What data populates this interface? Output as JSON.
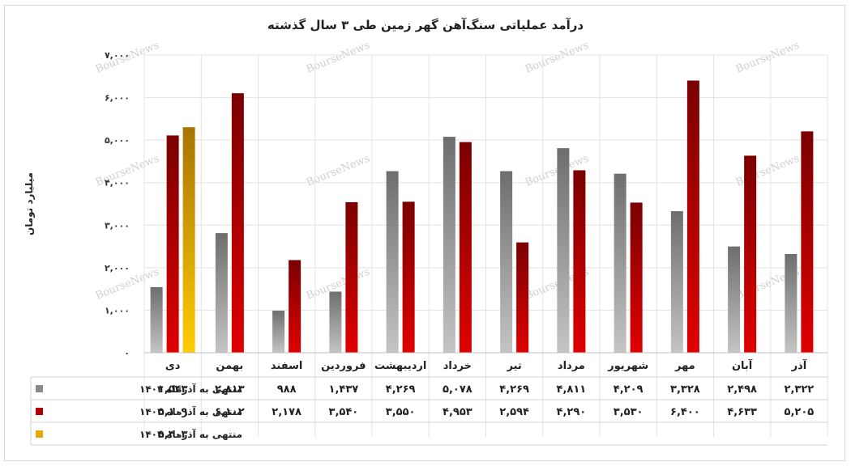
{
  "chart_data": {
    "type": "bar",
    "title": "درآمد عملیاتی سنگ‌آهن گهر زمین طی ۳ سال گذشته",
    "xlabel": "",
    "ylabel": "میلیارد تومان",
    "ylim": [
      0,
      7000
    ],
    "yticks": [
      0,
      1000,
      2000,
      3000,
      4000,
      5000,
      6000,
      7000
    ],
    "ytick_labels": [
      "۰",
      "۱,۰۰۰",
      "۲,۰۰۰",
      "۳,۰۰۰",
      "۴,۰۰۰",
      "۵,۰۰۰",
      "۶,۰۰۰",
      "۷,۰۰۰"
    ],
    "grid": true,
    "legend_placement": "table-below",
    "watermark": "BourseNews",
    "categories": [
      "آذر",
      "آبان",
      "مهر",
      "شهریور",
      "مرداد",
      "تیر",
      "خرداد",
      "اردیبهشت",
      "فروردین",
      "اسفند",
      "بهمن",
      "دی"
    ],
    "series": [
      {
        "name": "منتهی به آذرماه ۱۴۰۲",
        "color": "#8a8a8a",
        "values": [
          2322,
          2498,
          3328,
          4209,
          4811,
          4269,
          5078,
          4269,
          1437,
          988,
          2813,
          1543
        ],
        "labels": [
          "۲,۳۲۲",
          "۲,۴۹۸",
          "۳,۳۲۸",
          "۴,۲۰۹",
          "۴,۸۱۱",
          "۴,۲۶۹",
          "۵,۰۷۸",
          "۴,۲۶۹",
          "۱,۴۳۷",
          "۹۸۸",
          "۲,۸۱۳",
          "۱,۵۴۳"
        ]
      },
      {
        "name": "منتهی به آذرماه ۱۴۰۳",
        "color": "#b30000",
        "values": [
          5205,
          4633,
          6400,
          3530,
          4290,
          2594,
          4953,
          3550,
          3540,
          2178,
          6102,
          5109
        ],
        "labels": [
          "۵,۲۰۵",
          "۴,۶۳۳",
          "۶,۴۰۰",
          "۳,۵۳۰",
          "۴,۲۹۰",
          "۲,۵۹۴",
          "۴,۹۵۳",
          "۳,۵۵۰",
          "۳,۵۴۰",
          "۲,۱۷۸",
          "۶,۱۰۲",
          "۵,۱۰۹"
        ]
      },
      {
        "name": "منتهی به آذرماه ۱۴۰۴",
        "color": "#e8a800",
        "values": [
          null,
          null,
          null,
          null,
          null,
          null,
          null,
          null,
          null,
          null,
          null,
          5303
        ],
        "labels": [
          "",
          "",
          "",
          "",
          "",
          "",
          "",
          "",
          "",
          "",
          "",
          "۵,۳۰۳"
        ]
      }
    ]
  }
}
